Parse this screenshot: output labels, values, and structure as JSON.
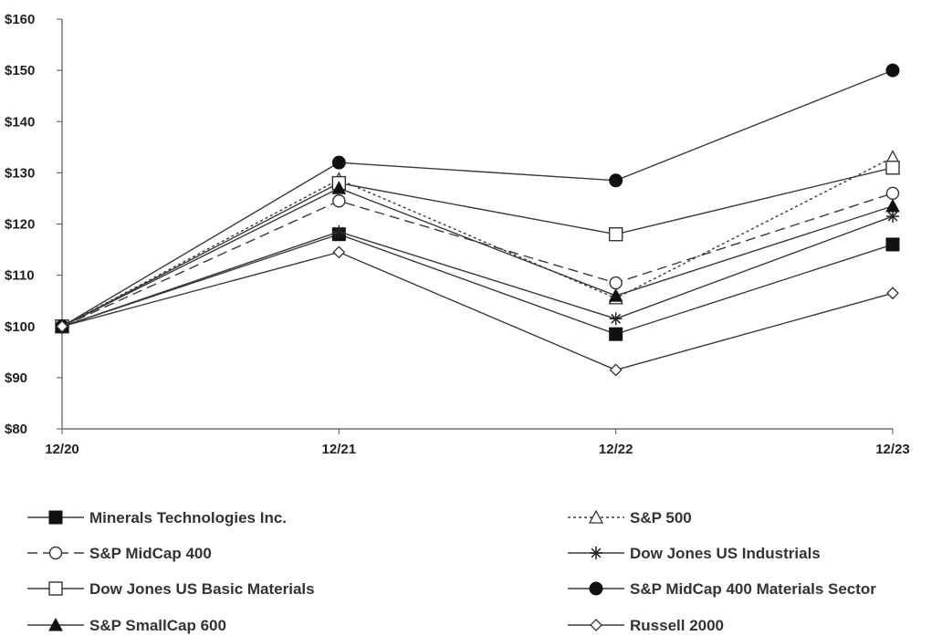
{
  "chart_data": {
    "type": "line",
    "title": "",
    "xlabel": "",
    "ylabel": "",
    "categories": [
      "12/20",
      "12/21",
      "12/22",
      "12/23"
    ],
    "y_ticks": [
      "$80",
      "$90",
      "$100",
      "$110",
      "$120",
      "$130",
      "$140",
      "$150",
      "$160"
    ],
    "ylim": [
      80,
      160
    ],
    "grid": false,
    "legend_position": "bottom",
    "series": [
      {
        "name": "Minerals Technologies Inc.",
        "values": [
          100,
          118,
          98.5,
          116
        ],
        "marker": "filled-square",
        "dash": "solid"
      },
      {
        "name": "S&P 500",
        "values": [
          100,
          128.7,
          105.5,
          133
        ],
        "marker": "open-triangle",
        "dash": "dotted"
      },
      {
        "name": "S&P MidCap 400",
        "values": [
          100,
          124.5,
          108.5,
          126
        ],
        "marker": "open-circle",
        "dash": "dashed"
      },
      {
        "name": "Dow Jones US Industrials",
        "values": [
          100,
          118.5,
          101.5,
          121.5
        ],
        "marker": "asterisk",
        "dash": "solid"
      },
      {
        "name": "Dow Jones US Basic Materials",
        "values": [
          100,
          128,
          118,
          131
        ],
        "marker": "open-square",
        "dash": "solid"
      },
      {
        "name": "S&P MidCap 400 Materials Sector",
        "values": [
          100,
          132,
          128.5,
          150
        ],
        "marker": "filled-circle",
        "dash": "solid"
      },
      {
        "name": "S&P SmallCap 600",
        "values": [
          100,
          127,
          106,
          123.5
        ],
        "marker": "filled-triangle",
        "dash": "solid"
      },
      {
        "name": "Russell 2000",
        "values": [
          100,
          114.5,
          91.5,
          106.5
        ],
        "marker": "open-diamond",
        "dash": "solid"
      }
    ]
  }
}
